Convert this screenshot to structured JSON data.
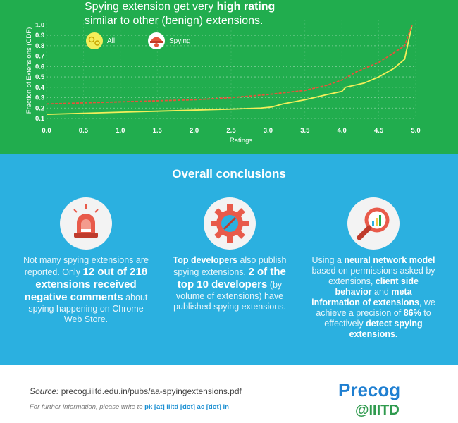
{
  "headline": {
    "part1": "Spying extension get very ",
    "bold": "high rating",
    "part2": "similar to other (benign) extensions."
  },
  "chart_data": {
    "type": "line",
    "xlabel": "Ratings",
    "ylabel": "Fraction of Extensions (CDF)",
    "xlim": [
      0,
      5
    ],
    "ylim": [
      0.1,
      1.05
    ],
    "x_ticks": [
      "0.0",
      "0.5",
      "1.0",
      "1.5",
      "2.0",
      "2.5",
      "3.0",
      "3.5",
      "4.0",
      "4.5",
      "5.0"
    ],
    "y_ticks": [
      "0.1",
      "0.2",
      "0.3",
      "0.4",
      "0.5",
      "0.6",
      "0.7",
      "0.8",
      "0.9",
      "1.0"
    ],
    "grid": true,
    "legend_position": "top-left",
    "series": [
      {
        "name": "All",
        "color": "#f4ee5a",
        "x": [
          0.0,
          0.5,
          1.0,
          1.5,
          2.0,
          2.5,
          2.9,
          3.05,
          3.2,
          3.5,
          3.8,
          4.0,
          4.05,
          4.3,
          4.5,
          4.7,
          4.85,
          4.95
        ],
        "y": [
          0.14,
          0.15,
          0.16,
          0.17,
          0.18,
          0.19,
          0.2,
          0.21,
          0.24,
          0.28,
          0.33,
          0.36,
          0.4,
          0.44,
          0.5,
          0.58,
          0.67,
          1.0
        ]
      },
      {
        "name": "Spying",
        "color": "#e5543a",
        "x": [
          0.0,
          0.5,
          1.0,
          1.5,
          2.0,
          2.5,
          3.0,
          3.5,
          3.8,
          4.0,
          4.2,
          4.5,
          4.7,
          4.85,
          4.95
        ],
        "y": [
          0.24,
          0.25,
          0.26,
          0.27,
          0.28,
          0.3,
          0.33,
          0.37,
          0.42,
          0.47,
          0.55,
          0.64,
          0.73,
          0.8,
          1.0
        ]
      }
    ]
  },
  "conclusions": {
    "title": "Overall conclusions",
    "col1": {
      "t1": "Not many spying extensions are reported. Only ",
      "b1": "12 out of 218 extensions received negative comments",
      "t2": " about spying happening on Chrome Web Store."
    },
    "col2": {
      "b1": "Top developers",
      "t1": " also publish spying extensions. ",
      "b2": "2 of the top 10 developers",
      "t2": " (by volume of extensions) have published spying extensions."
    },
    "col3": {
      "t1": "Using a ",
      "b1": "neural network model",
      "t2": " based on permissions asked by extensions, ",
      "b2": "client side behavior",
      "t3": " and ",
      "b3": "meta information of extensions",
      "t4": ", we achieve a precision of ",
      "b4": "86%",
      "t5": " to effectively ",
      "b5": "detect spying extensions."
    }
  },
  "footer": {
    "source_label": "Source:",
    "source_text": " precog.iiitd.edu.in/pubs/aa-spyingextensions.pdf",
    "contact_text": "For further information, please write to ",
    "contact_email": "pk [at] iiitd [dot] ac [dot] in",
    "logo_top": "Precog",
    "logo_bottom": "@IIITD"
  },
  "colors": {
    "green_bg": "#21ad4e",
    "blue_bg": "#2bb0e0",
    "all_line": "#f4ee5a",
    "spying_line": "#e5543a",
    "email": "#1b8fd2"
  }
}
